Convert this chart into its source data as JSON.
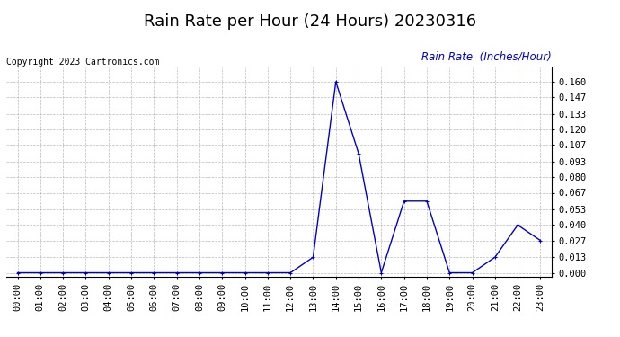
{
  "title": "Rain Rate per Hour (24 Hours) 20230316",
  "copyright_text": "Copyright 2023 Cartronics.com",
  "ylabel": "Rain Rate  (Inches/Hour)",
  "background_color": "#ffffff",
  "line_color": "#0000cc",
  "grid_color": "#aaaaaa",
  "hours": [
    0,
    1,
    2,
    3,
    4,
    5,
    6,
    7,
    8,
    9,
    10,
    11,
    12,
    13,
    14,
    15,
    16,
    17,
    18,
    19,
    20,
    21,
    22,
    23
  ],
  "values": [
    0.0,
    0.0,
    0.0,
    0.0,
    0.0,
    0.0,
    0.0,
    0.0,
    0.0,
    0.0,
    0.0,
    0.0,
    0.0,
    0.013,
    0.16,
    0.1,
    0.0,
    0.06,
    0.06,
    0.0,
    0.0,
    0.013,
    0.04,
    0.027
  ],
  "yticks": [
    0.0,
    0.013,
    0.027,
    0.04,
    0.053,
    0.067,
    0.08,
    0.093,
    0.107,
    0.12,
    0.133,
    0.147,
    0.16
  ],
  "ylim": [
    -0.003,
    0.172
  ],
  "title_fontsize": 13,
  "tick_label_fontsize": 7.5,
  "ylabel_fontsize": 8.5,
  "copyright_fontsize": 7,
  "marker": "+"
}
